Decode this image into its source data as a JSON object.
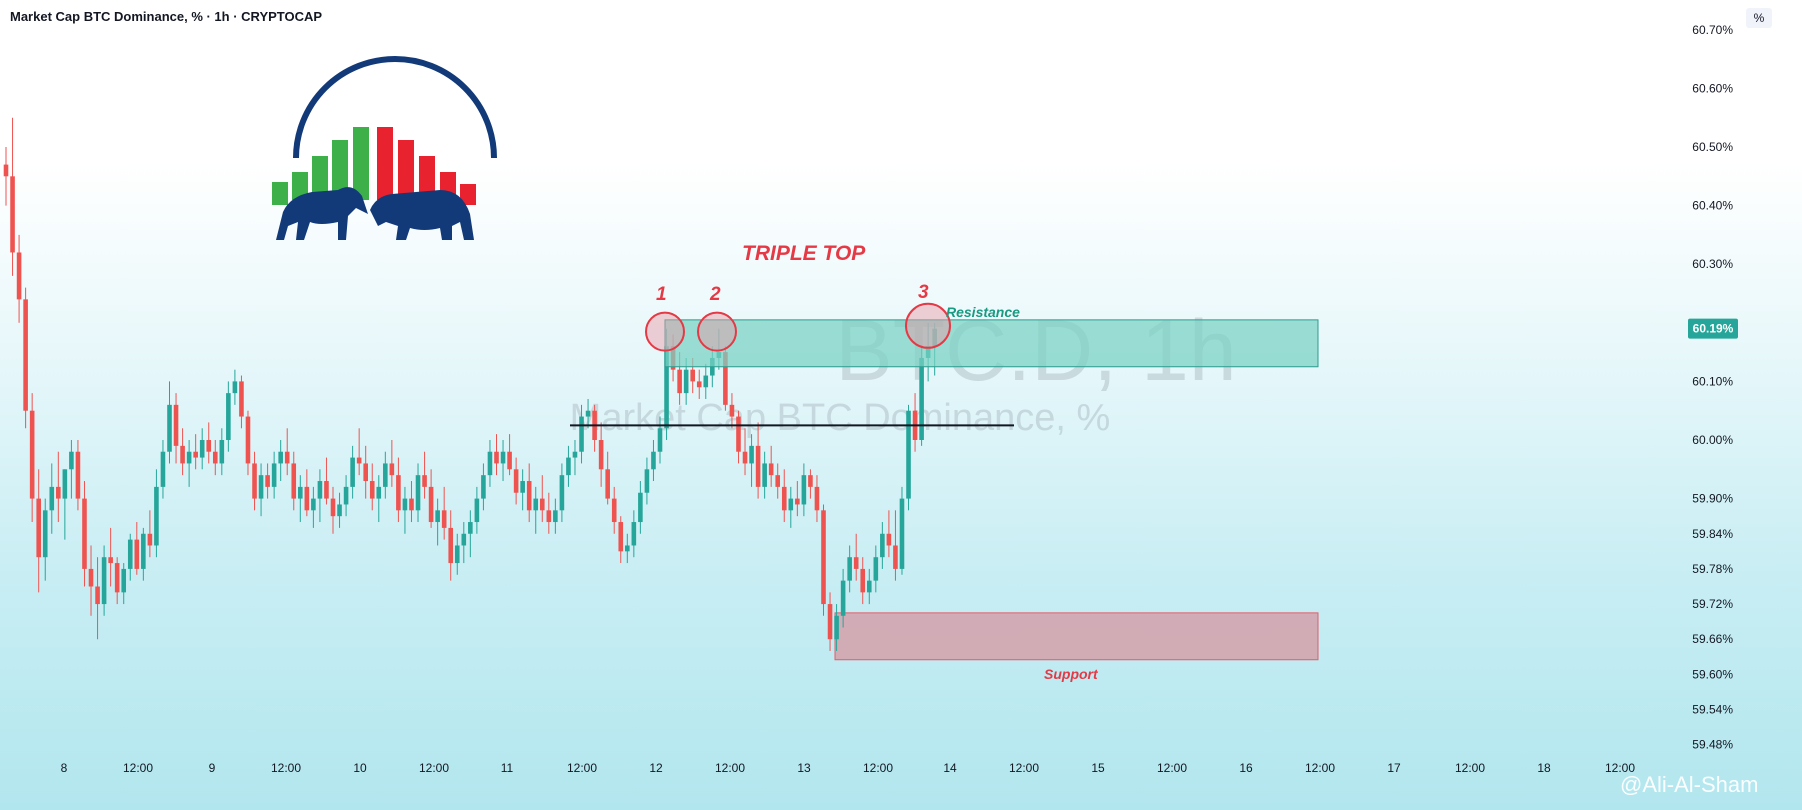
{
  "header": {
    "title": "Market Cap BTC Dominance, % · 1h · CRYPTOCAP",
    "percent_button": "%"
  },
  "watermark": {
    "symbol": "BTC.D, 1h",
    "name": "Market Cap BTC Dominance, %"
  },
  "annotations": {
    "pattern": "TRIPLE TOP",
    "top_1": "1",
    "top_2": "2",
    "top_3": "3",
    "resistance": "Resistance",
    "support": "Support"
  },
  "author": "@Ali-Al-Sham",
  "colors": {
    "up": "#26a69a",
    "down": "#ef5350",
    "resistance_zone": "#79d1c3",
    "support_zone": "#d4a1aa",
    "annotation_red": "#e53945",
    "annotation_teal": "#1a9a80",
    "last_price_badge": "#26a69a",
    "logo_blue": "#123a79"
  },
  "chart_data": {
    "type": "candlestick",
    "title": "Market Cap BTC Dominance, % · 1h · CRYPTOCAP",
    "y_axis_ticks": [
      "60.70%",
      "60.60%",
      "60.50%",
      "60.40%",
      "60.30%",
      "60.10%",
      "60.00%",
      "59.90%",
      "59.84%",
      "59.78%",
      "59.72%",
      "59.66%",
      "59.60%",
      "59.54%",
      "59.48%"
    ],
    "x_axis_ticks": [
      "8",
      "12:00",
      "9",
      "12:00",
      "10",
      "12:00",
      "11",
      "12:00",
      "12",
      "12:00",
      "13",
      "12:00",
      "14",
      "12:00",
      "15",
      "12:00",
      "16",
      "12:00",
      "17",
      "12:00",
      "18",
      "12:00"
    ],
    "last_price": "60.19%",
    "ylim": [
      59.46,
      60.72
    ],
    "resistance_zone": [
      60.125,
      60.205
    ],
    "support_zone": [
      59.625,
      59.705
    ],
    "neckline": 60.025,
    "tops": [
      60.19,
      60.19,
      60.2
    ],
    "candles": [
      [
        60.47,
        60.5,
        60.4,
        60.45
      ],
      [
        60.45,
        60.55,
        60.28,
        60.32
      ],
      [
        60.32,
        60.35,
        60.2,
        60.24
      ],
      [
        60.24,
        60.26,
        60.02,
        60.05
      ],
      [
        60.05,
        60.08,
        59.86,
        59.9
      ],
      [
        59.9,
        59.95,
        59.74,
        59.8
      ],
      [
        59.8,
        59.9,
        59.76,
        59.88
      ],
      [
        59.88,
        59.96,
        59.84,
        59.92
      ],
      [
        59.92,
        59.98,
        59.86,
        59.9
      ],
      [
        59.9,
        59.95,
        59.83,
        59.95
      ],
      [
        59.95,
        60.0,
        59.9,
        59.98
      ],
      [
        59.98,
        60.0,
        59.88,
        59.9
      ],
      [
        59.9,
        59.93,
        59.75,
        59.78
      ],
      [
        59.78,
        59.82,
        59.7,
        59.75
      ],
      [
        59.75,
        59.8,
        59.66,
        59.72
      ],
      [
        59.72,
        59.82,
        59.7,
        59.8
      ],
      [
        59.8,
        59.85,
        59.75,
        59.79
      ],
      [
        59.79,
        59.8,
        59.72,
        59.74
      ],
      [
        59.74,
        59.79,
        59.72,
        59.78
      ],
      [
        59.78,
        59.84,
        59.76,
        59.83
      ],
      [
        59.83,
        59.86,
        59.77,
        59.78
      ],
      [
        59.78,
        59.85,
        59.76,
        59.84
      ],
      [
        59.84,
        59.88,
        59.8,
        59.82
      ],
      [
        59.82,
        59.95,
        59.8,
        59.92
      ],
      [
        59.92,
        60.0,
        59.9,
        59.98
      ],
      [
        59.98,
        60.1,
        59.96,
        60.06
      ],
      [
        60.06,
        60.08,
        59.96,
        59.99
      ],
      [
        59.99,
        60.02,
        59.94,
        59.96
      ],
      [
        59.96,
        60.0,
        59.92,
        59.98
      ],
      [
        59.98,
        60.01,
        59.95,
        59.97
      ],
      [
        59.97,
        60.02,
        59.95,
        60.0
      ],
      [
        60.0,
        60.03,
        59.96,
        59.98
      ],
      [
        59.98,
        60.0,
        59.94,
        59.96
      ],
      [
        59.96,
        60.02,
        59.94,
        60.0
      ],
      [
        60.0,
        60.1,
        59.98,
        60.08
      ],
      [
        60.08,
        60.12,
        60.06,
        60.1
      ],
      [
        60.1,
        60.11,
        60.02,
        60.04
      ],
      [
        60.04,
        60.05,
        59.94,
        59.96
      ],
      [
        59.96,
        59.98,
        59.88,
        59.9
      ],
      [
        59.9,
        59.96,
        59.87,
        59.94
      ],
      [
        59.94,
        59.96,
        59.9,
        59.92
      ],
      [
        59.92,
        59.98,
        59.9,
        59.96
      ],
      [
        59.96,
        60.0,
        59.93,
        59.98
      ],
      [
        59.98,
        60.02,
        59.94,
        59.96
      ],
      [
        59.96,
        59.98,
        59.88,
        59.9
      ],
      [
        59.9,
        59.94,
        59.86,
        59.92
      ],
      [
        59.92,
        59.95,
        59.87,
        59.88
      ],
      [
        59.88,
        59.92,
        59.85,
        59.9
      ],
      [
        59.9,
        59.95,
        59.86,
        59.93
      ],
      [
        59.93,
        59.97,
        59.89,
        59.9
      ],
      [
        59.9,
        59.92,
        59.84,
        59.87
      ],
      [
        59.87,
        59.91,
        59.85,
        59.89
      ],
      [
        59.89,
        59.94,
        59.87,
        59.92
      ],
      [
        59.92,
        59.99,
        59.9,
        59.97
      ],
      [
        59.97,
        60.02,
        59.94,
        59.96
      ],
      [
        59.96,
        59.99,
        59.9,
        59.93
      ],
      [
        59.93,
        59.96,
        59.88,
        59.9
      ],
      [
        59.9,
        59.94,
        59.86,
        59.92
      ],
      [
        59.92,
        59.98,
        59.9,
        59.96
      ],
      [
        59.96,
        60.0,
        59.92,
        59.94
      ],
      [
        59.94,
        59.97,
        59.86,
        59.88
      ],
      [
        59.88,
        59.92,
        59.84,
        59.9
      ],
      [
        59.9,
        59.93,
        59.86,
        59.88
      ],
      [
        59.88,
        59.96,
        59.86,
        59.94
      ],
      [
        59.94,
        59.98,
        59.9,
        59.92
      ],
      [
        59.92,
        59.95,
        59.85,
        59.86
      ],
      [
        59.86,
        59.9,
        59.82,
        59.88
      ],
      [
        59.88,
        59.92,
        59.83,
        59.85
      ],
      [
        59.85,
        59.88,
        59.76,
        59.79
      ],
      [
        59.79,
        59.84,
        59.77,
        59.82
      ],
      [
        59.82,
        59.86,
        59.79,
        59.84
      ],
      [
        59.84,
        59.88,
        59.8,
        59.86
      ],
      [
        59.86,
        59.92,
        59.84,
        59.9
      ],
      [
        59.9,
        59.96,
        59.88,
        59.94
      ],
      [
        59.94,
        60.0,
        59.92,
        59.98
      ],
      [
        59.98,
        60.01,
        59.94,
        59.96
      ],
      [
        59.96,
        60.0,
        59.93,
        59.98
      ],
      [
        59.98,
        60.01,
        59.94,
        59.95
      ],
      [
        59.95,
        59.97,
        59.89,
        59.91
      ],
      [
        59.91,
        59.95,
        59.88,
        59.93
      ],
      [
        59.93,
        59.96,
        59.86,
        59.88
      ],
      [
        59.88,
        59.92,
        59.84,
        59.9
      ],
      [
        59.9,
        59.94,
        59.86,
        59.88
      ],
      [
        59.88,
        59.91,
        59.84,
        59.86
      ],
      [
        59.86,
        59.9,
        59.84,
        59.88
      ],
      [
        59.88,
        59.96,
        59.86,
        59.94
      ],
      [
        59.94,
        59.99,
        59.92,
        59.97
      ],
      [
        59.97,
        60.0,
        59.94,
        59.98
      ],
      [
        59.98,
        60.06,
        59.96,
        60.04
      ],
      [
        60.04,
        60.07,
        60.02,
        60.05
      ],
      [
        60.05,
        60.06,
        59.98,
        60.0
      ],
      [
        60.0,
        60.03,
        59.92,
        59.95
      ],
      [
        59.95,
        59.98,
        59.89,
        59.9
      ],
      [
        59.9,
        59.92,
        59.84,
        59.86
      ],
      [
        59.86,
        59.87,
        59.79,
        59.81
      ],
      [
        59.81,
        59.84,
        59.79,
        59.82
      ],
      [
        59.82,
        59.88,
        59.8,
        59.86
      ],
      [
        59.86,
        59.93,
        59.84,
        59.91
      ],
      [
        59.91,
        59.97,
        59.89,
        59.95
      ],
      [
        59.95,
        60.0,
        59.93,
        59.98
      ],
      [
        59.98,
        60.04,
        59.96,
        60.02
      ],
      [
        60.02,
        60.19,
        60.0,
        60.16
      ],
      [
        60.16,
        60.18,
        60.1,
        60.12
      ],
      [
        60.12,
        60.15,
        60.06,
        60.08
      ],
      [
        60.08,
        60.14,
        60.06,
        60.12
      ],
      [
        60.12,
        60.14,
        60.08,
        60.1
      ],
      [
        60.1,
        60.12,
        60.07,
        60.09
      ],
      [
        60.09,
        60.13,
        60.07,
        60.11
      ],
      [
        60.11,
        60.16,
        60.09,
        60.14
      ],
      [
        60.14,
        60.19,
        60.12,
        60.15
      ],
      [
        60.15,
        60.16,
        60.05,
        60.06
      ],
      [
        60.06,
        60.08,
        60.02,
        60.04
      ],
      [
        60.04,
        60.05,
        59.96,
        59.98
      ],
      [
        59.98,
        60.02,
        59.94,
        59.96
      ],
      [
        59.96,
        60.01,
        59.92,
        59.99
      ],
      [
        59.99,
        60.03,
        59.9,
        59.92
      ],
      [
        59.92,
        59.98,
        59.9,
        59.96
      ],
      [
        59.96,
        59.99,
        59.92,
        59.94
      ],
      [
        59.94,
        59.96,
        59.9,
        59.92
      ],
      [
        59.92,
        59.95,
        59.86,
        59.88
      ],
      [
        59.88,
        59.92,
        59.85,
        59.9
      ],
      [
        59.9,
        59.93,
        59.87,
        59.89
      ],
      [
        59.89,
        59.96,
        59.87,
        59.94
      ],
      [
        59.94,
        59.95,
        59.9,
        59.92
      ],
      [
        59.92,
        59.94,
        59.86,
        59.88
      ],
      [
        59.88,
        59.89,
        59.7,
        59.72
      ],
      [
        59.72,
        59.74,
        59.64,
        59.66
      ],
      [
        59.66,
        59.72,
        59.64,
        59.7
      ],
      [
        59.7,
        59.78,
        59.68,
        59.76
      ],
      [
        59.76,
        59.82,
        59.74,
        59.8
      ],
      [
        59.8,
        59.84,
        59.76,
        59.78
      ],
      [
        59.78,
        59.8,
        59.72,
        59.74
      ],
      [
        59.74,
        59.78,
        59.72,
        59.76
      ],
      [
        59.76,
        59.82,
        59.74,
        59.8
      ],
      [
        59.8,
        59.86,
        59.78,
        59.84
      ],
      [
        59.84,
        59.88,
        59.8,
        59.82
      ],
      [
        59.82,
        59.88,
        59.76,
        59.78
      ],
      [
        59.78,
        59.92,
        59.77,
        59.9
      ],
      [
        59.9,
        60.06,
        59.88,
        60.05
      ],
      [
        60.05,
        60.08,
        59.98,
        60.0
      ],
      [
        60.0,
        60.16,
        59.99,
        60.14
      ],
      [
        60.14,
        60.2,
        60.1,
        60.16
      ],
      [
        60.16,
        60.2,
        60.11,
        60.19
      ]
    ]
  }
}
